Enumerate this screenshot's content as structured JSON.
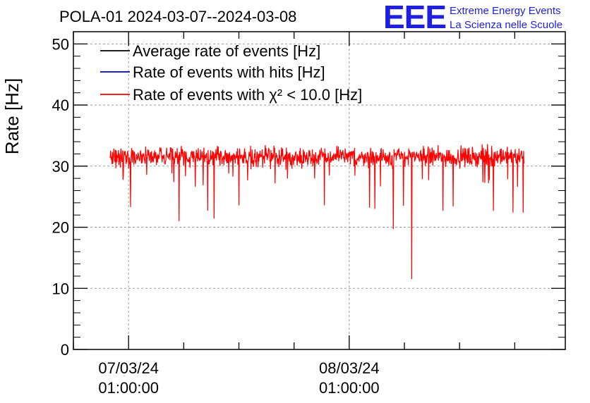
{
  "chart_data": {
    "type": "line",
    "title": "POLA-01 2024-03-07--2024-03-08",
    "ylabel": "Rate [Hz]",
    "xlabel": "",
    "ylim": [
      0,
      52
    ],
    "yticks": [
      0,
      10,
      20,
      30,
      40,
      50
    ],
    "xticks": [
      {
        "label_date": "07/03/24",
        "label_time": "01:00:00",
        "hours": 0
      },
      {
        "label_date": "08/03/24",
        "label_time": "01:00:00",
        "hours": 24
      }
    ],
    "xlim_hours": [
      -6,
      47.5
    ],
    "data_range_hours": [
      -2,
      43
    ],
    "grid": true,
    "legend": [
      {
        "label": "Average rate of events [Hz]",
        "color": "#000000"
      },
      {
        "label": "Rate of events with hits [Hz]",
        "color": "#0000cc"
      },
      {
        "label": "Rate of events with χ² < 10.0 [Hz]",
        "color": "#ff0000"
      }
    ],
    "series": [
      {
        "name": "Rate of events with chi2 < 10.0 [Hz]",
        "color": "#ff0000",
        "mean": 31.5,
        "noise": 1.2
      },
      {
        "name": "Rate of events with hits [Hz]",
        "color": "#0000cc",
        "hidden_under_red": true
      },
      {
        "name": "Average rate of events [Hz]",
        "color": "#000000",
        "hidden_under_red": true
      }
    ],
    "dips": [
      {
        "hours": 0.2,
        "value": 23.3
      },
      {
        "hours": 5.5,
        "value": 21.0
      },
      {
        "hours": 8.6,
        "value": 22.7
      },
      {
        "hours": 9.3,
        "value": 21.4
      },
      {
        "hours": 12.0,
        "value": 23.6
      },
      {
        "hours": 21.3,
        "value": 23.6
      },
      {
        "hours": 26.2,
        "value": 23.2
      },
      {
        "hours": 26.8,
        "value": 23.0
      },
      {
        "hours": 28.8,
        "value": 19.7
      },
      {
        "hours": 29.9,
        "value": 23.5
      },
      {
        "hours": 30.8,
        "value": 11.5
      },
      {
        "hours": 34.2,
        "value": 22.7
      },
      {
        "hours": 35.3,
        "value": 23.4
      },
      {
        "hours": 39.7,
        "value": 22.7
      },
      {
        "hours": 41.8,
        "value": 22.4
      },
      {
        "hours": 42.9,
        "value": 22.4
      }
    ]
  },
  "logo": {
    "mark": "EEE",
    "line1": "Extreme Energy Events",
    "line2": "La Scienza nelle Scuole",
    "color": "#1f1fe0"
  }
}
